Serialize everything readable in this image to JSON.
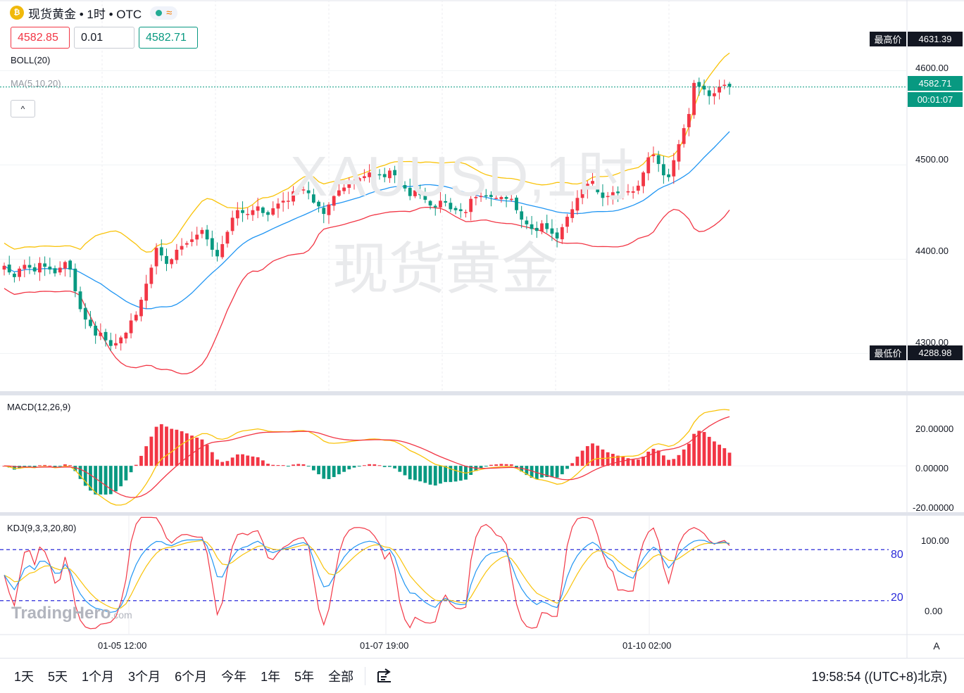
{
  "header": {
    "coin_symbol": "₿",
    "title": "现货黄金 • 1时 • OTC",
    "status_icon": "market-open-dot",
    "wave_icon": "≈"
  },
  "quote": {
    "sell": "4582.85",
    "spread": "0.01",
    "buy": "4582.71"
  },
  "indicators": {
    "boll_label": "BOLL(20)",
    "ma_label": "MA(5,10,20)",
    "collapse_symbol": "^",
    "macd_label": "MACD(12,26,9)",
    "kdj_label": "KDJ(9,3,3,20,80)"
  },
  "price_tags": {
    "high_label": "最高价",
    "high_value": "4631.39",
    "current_value": "4582.71",
    "countdown": "00:01:07",
    "low_label": "最低价",
    "low_value": "4288.98"
  },
  "watermark": {
    "line1": "XAUUSD,1时",
    "line2": "现货黄金"
  },
  "brand": {
    "name": "TradingHero",
    "suffix": ".com"
  },
  "kdj_levels": {
    "upper": "80",
    "lower": "20"
  },
  "bottom_bar": {
    "ranges": [
      "1天",
      "5天",
      "1个月",
      "3个月",
      "6个月",
      "今年",
      "1年",
      "5年",
      "全部"
    ],
    "clock": "19:58:54 ((UTC+8)北京)",
    "auto_label": "A"
  },
  "colors": {
    "up": "#f23645",
    "down": "#089981",
    "boll_upper": "#f9c30a",
    "boll_mid": "#2196f3",
    "boll_lower": "#f23645",
    "macd_dif": "#f9c30a",
    "macd_dea": "#f23645",
    "kdj_k": "#2196f3",
    "kdj_d": "#f9c30a",
    "kdj_j": "#f23645",
    "level_line": "#2a2ad9"
  },
  "chart_data": {
    "type": "candlestick",
    "timeframe": "1时",
    "symbol": "XAUUSD",
    "price_axis": {
      "ticks": [
        "4600.00",
        "4500.00",
        "4400.00",
        "4300.00"
      ],
      "range": [
        4260,
        4660
      ]
    },
    "time_axis": {
      "ticks": [
        "01-05 12:00",
        "01-07 19:00",
        "01-10 02:00"
      ]
    },
    "closes": [
      4393,
      4386,
      4381,
      4390,
      4394,
      4391,
      4387,
      4396,
      4392,
      4389,
      4385,
      4391,
      4397,
      4389,
      4366,
      4347,
      4336,
      4329,
      4319,
      4322,
      4314,
      4308,
      4311,
      4317,
      4322,
      4335,
      4341,
      4357,
      4374,
      4391,
      4412,
      4404,
      4395,
      4400,
      4410,
      4414,
      4417,
      4421,
      4426,
      4431,
      4421,
      4410,
      4403,
      4416,
      4429,
      4444,
      4452,
      4449,
      4448,
      4452,
      4456,
      4449,
      4447,
      4454,
      4459,
      4462,
      4462,
      4472,
      4474,
      4474,
      4470,
      4460,
      4456,
      4448,
      4458,
      4467,
      4473,
      4476,
      4481,
      4483,
      4486,
      4488,
      4492,
      4491,
      4490,
      4487,
      4494,
      4489,
      4480,
      4475,
      4467,
      4473,
      4468,
      4463,
      4457,
      4455,
      4462,
      4460,
      4453,
      4452,
      4451,
      4450,
      4464,
      4466,
      4467,
      4467,
      4466,
      4465,
      4466,
      4464,
      4464,
      4452,
      4442,
      4437,
      4432,
      4430,
      4438,
      4432,
      4427,
      4422,
      4434,
      4445,
      4453,
      4465,
      4474,
      4480,
      4483,
      4471,
      4465,
      4467,
      4471,
      4470,
      4473,
      4472,
      4472,
      4478,
      4492,
      4508,
      4511,
      4501,
      4489,
      4487,
      4505,
      4522,
      4539,
      4554,
      4587,
      4583,
      4580,
      4573,
      4576,
      4583,
      4585,
      4583
    ],
    "macd": {
      "axis_ticks": [
        "20.00000",
        "0.00000",
        "-20.00000"
      ],
      "range": [
        -25,
        38
      ]
    },
    "kdj": {
      "axis_ticks": [
        "100.00",
        "0.00"
      ],
      "levels": [
        80,
        20
      ],
      "range": [
        -20,
        120
      ]
    }
  }
}
